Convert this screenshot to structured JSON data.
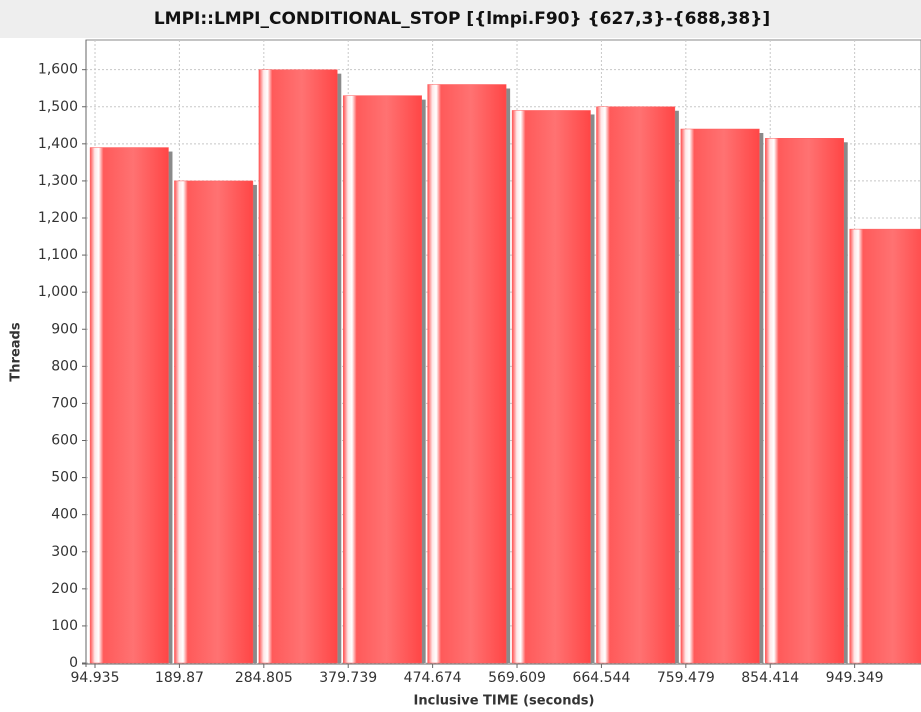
{
  "chart_data": {
    "type": "histogram",
    "title": "LMPI::LMPI_CONDITIONAL_STOP [{lmpi.F90} {627,3}-{688,38}]",
    "x_label": "Inclusive TIME (seconds)",
    "y_label": "Threads",
    "bins": [
      89.4,
      184.3,
      279.3,
      374.2,
      469.1,
      564.1,
      659.0,
      753.9,
      848.9,
      943.8,
      1038.8
    ],
    "values": [
      1390,
      1300,
      1600,
      1530,
      1560,
      1490,
      1500,
      1440,
      1415,
      1170
    ],
    "color": "#ff5a5a",
    "xlim": [
      84.8,
      1024
    ],
    "ylim": [
      0,
      1680
    ],
    "xticks": [
      94.935,
      189.87,
      284.805,
      379.739,
      474.674,
      569.609,
      664.544,
      759.479,
      854.414,
      949.349
    ],
    "yticks": [
      0,
      100,
      200,
      300,
      400,
      500,
      600,
      700,
      800,
      900,
      {
        "value": 1000,
        "label": "1,000"
      },
      {
        "value": 1100,
        "label": "1,100"
      },
      {
        "value": 1200,
        "label": "1,200"
      },
      {
        "value": 1300,
        "label": "1,300"
      },
      {
        "value": 1400,
        "label": "1,400"
      },
      {
        "value": 1500,
        "label": "1,500"
      },
      {
        "value": 1600,
        "label": "1,600"
      }
    ],
    "grid": true
  }
}
